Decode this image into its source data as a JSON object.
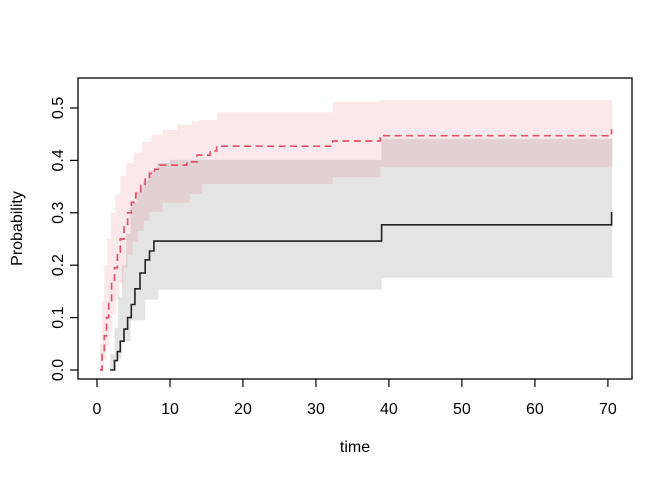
{
  "chart_data": {
    "type": "line",
    "subtype": "step-function-cumulative-incidence",
    "title": "",
    "xlabel": "time",
    "ylabel": "Probability",
    "x_ticks": [
      0,
      10,
      20,
      30,
      40,
      50,
      60,
      70
    ],
    "y_ticks": [
      0.0,
      0.1,
      0.2,
      0.3,
      0.4,
      0.5
    ],
    "xlim": [
      -2.6,
      73.3
    ],
    "ylim": [
      -0.0172,
      0.5572
    ],
    "grid": false,
    "legend": "none",
    "background": "#ffffff",
    "frame_color": "#000000",
    "t_end": 70.6,
    "series": [
      {
        "name": "group-1-solid-black",
        "color": "#222222",
        "dash": "solid",
        "width": 1.6,
        "band_color": "rgba(0,0,0,0.105)",
        "steps": {
          "t": [
            1.8,
            2.4,
            2.8,
            3.2,
            3.7,
            4.2,
            4.7,
            5.2,
            5.9,
            6.6,
            7.2,
            7.8,
            39.0,
            70.5
          ],
          "p": [
            0.0,
            0.018,
            0.035,
            0.055,
            0.078,
            0.1,
            0.125,
            0.155,
            0.185,
            0.21,
            0.227,
            0.246,
            0.277,
            0.3
          ]
        },
        "band": {
          "upper": {
            "t": [
              1.8,
              2.4,
              2.9,
              3.4,
              4.0,
              4.6,
              5.4,
              6.3,
              7.0,
              8.2,
              10.0,
              39.0
            ],
            "p": [
              0.03,
              0.08,
              0.14,
              0.2,
              0.26,
              0.32,
              0.34,
              0.36,
              0.38,
              0.395,
              0.401,
              0.441
            ]
          },
          "lower": {
            "t": [
              1.8,
              2.6,
              3.4,
              4.6,
              6.6,
              8.4,
              39.0
            ],
            "p": [
              0.0,
              0.022,
              0.055,
              0.095,
              0.134,
              0.153,
              0.176
            ]
          }
        }
      },
      {
        "name": "group-2-dashed-red",
        "color": "#DF536B",
        "dash": "7 4.5",
        "width": 1.7,
        "band_color": "rgba(223,83,107,0.135)",
        "steps": {
          "t": [
            0.4,
            0.7,
            1.0,
            1.3,
            1.6,
            2.0,
            2.4,
            2.8,
            3.2,
            3.7,
            4.2,
            4.7,
            5.3,
            6.0,
            6.6,
            7.2,
            7.9,
            8.6,
            12.3,
            13.7,
            15.5,
            16.4,
            32.3,
            38.8,
            70.5
          ],
          "p": [
            0.0,
            0.03,
            0.065,
            0.1,
            0.13,
            0.165,
            0.195,
            0.225,
            0.25,
            0.275,
            0.3,
            0.32,
            0.337,
            0.352,
            0.364,
            0.375,
            0.383,
            0.391,
            0.397,
            0.41,
            0.418,
            0.427,
            0.437,
            0.447,
            0.458
          ]
        },
        "band": {
          "upper": {
            "t": [
              0.4,
              0.7,
              1.0,
              1.4,
              1.9,
              2.5,
              3.2,
              4.0,
              5.0,
              6.2,
              7.5,
              9.0,
              11.0,
              13.0,
              14.0,
              16.5,
              32.3,
              38.8
            ],
            "p": [
              0.05,
              0.13,
              0.2,
              0.25,
              0.3,
              0.335,
              0.37,
              0.395,
              0.415,
              0.435,
              0.449,
              0.458,
              0.468,
              0.474,
              0.477,
              0.492,
              0.512,
              0.515
            ]
          },
          "lower": {
            "t": [
              0.4,
              0.9,
              1.3,
              1.7,
              2.1,
              2.6,
              3.1,
              3.6,
              4.2,
              4.9,
              5.6,
              6.4,
              7.2,
              9.0,
              12.7,
              14.4,
              32.3,
              38.8
            ],
            "p": [
              0.0,
              0.02,
              0.045,
              0.075,
              0.105,
              0.135,
              0.165,
              0.195,
              0.22,
              0.245,
              0.265,
              0.285,
              0.302,
              0.319,
              0.336,
              0.355,
              0.368,
              0.387
            ]
          }
        }
      }
    ]
  }
}
